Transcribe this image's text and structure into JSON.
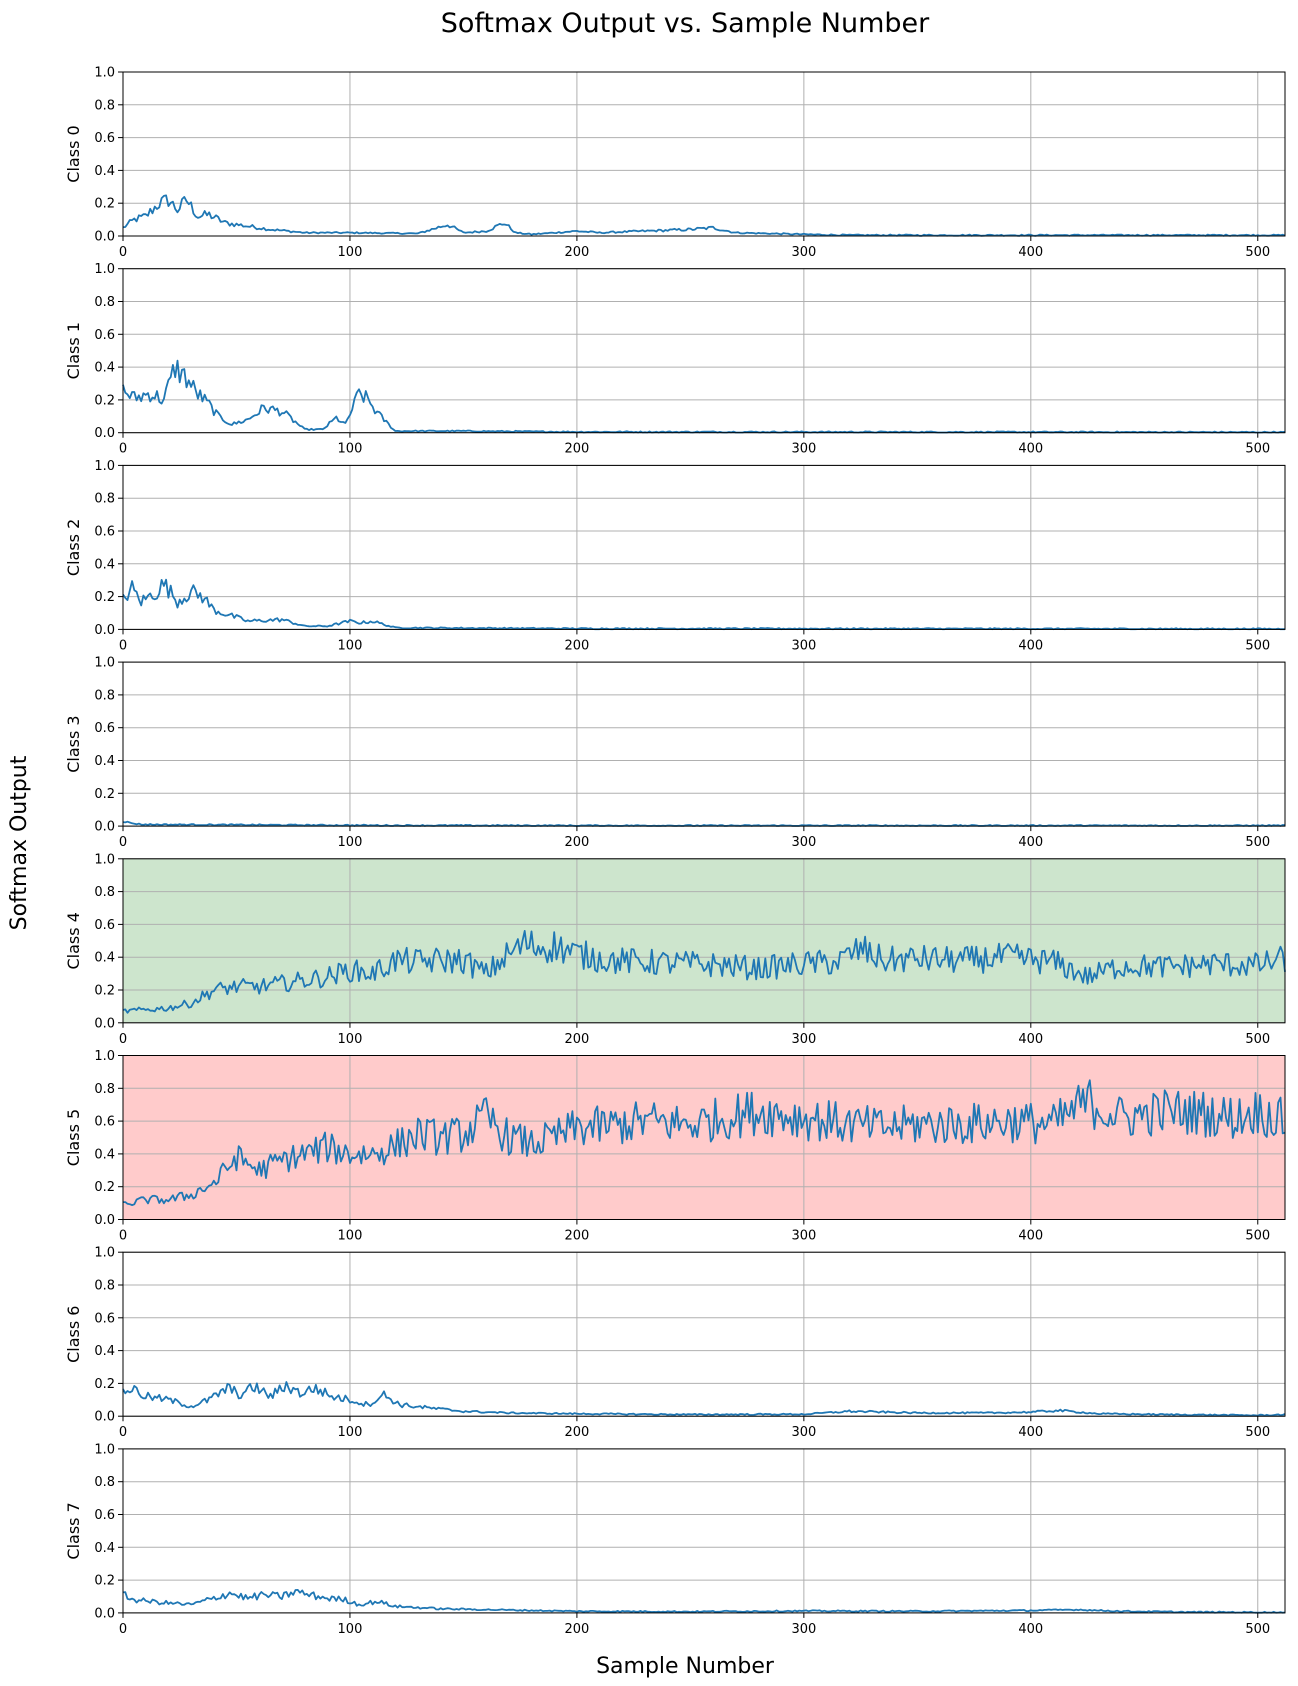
{
  "title": "Softmax Output vs. Sample Number",
  "xlabel": "Sample Number",
  "ylabel": "Softmax Output",
  "colors": {
    "line": "#1f77b4",
    "highlight_green": "#cde5cd",
    "highlight_red": "#ffcbcb",
    "grid": "#b0b0b0"
  },
  "chart_data": {
    "type": "line",
    "title": "Softmax Output vs. Sample Number",
    "xlabel": "Sample Number",
    "ylabel": "Softmax Output",
    "xlim": [
      0,
      512
    ],
    "ylim": [
      0,
      1
    ],
    "xticks": [
      0,
      100,
      200,
      300,
      400,
      500
    ],
    "xtick_labels": [
      "0",
      "100",
      "200",
      "300",
      "400",
      "500"
    ],
    "yticks": [
      0,
      0.2,
      0.4,
      0.6,
      0.8,
      1.0
    ],
    "ytick_labels": [
      "0.0",
      "0.2",
      "0.4",
      "0.6",
      "0.8",
      "1.0"
    ],
    "grid": true,
    "n_samples": 513,
    "subplots": [
      {
        "label": "Class 0",
        "background": null,
        "x": [
          0,
          5,
          10,
          16,
          20,
          24,
          28,
          33,
          38,
          45,
          55,
          65,
          80,
          100,
          130,
          143,
          150,
          160,
          168,
          173,
          180,
          200,
          210,
          230,
          250,
          260,
          270,
          300,
          320,
          512
        ],
        "values": [
          0.05,
          0.1,
          0.12,
          0.2,
          0.22,
          0.16,
          0.22,
          0.12,
          0.13,
          0.08,
          0.06,
          0.04,
          0.02,
          0.02,
          0.015,
          0.07,
          0.02,
          0.03,
          0.08,
          0.02,
          0.01,
          0.03,
          0.02,
          0.03,
          0.04,
          0.05,
          0.02,
          0.01,
          0.005,
          0.005
        ]
      },
      {
        "label": "Class 1",
        "background": null,
        "x": [
          0,
          5,
          12,
          18,
          23,
          28,
          32,
          38,
          42,
          48,
          55,
          62,
          70,
          80,
          88,
          94,
          98,
          104,
          108,
          112,
          120,
          150,
          200,
          512
        ],
        "values": [
          0.26,
          0.21,
          0.24,
          0.2,
          0.4,
          0.33,
          0.25,
          0.17,
          0.1,
          0.05,
          0.08,
          0.15,
          0.13,
          0.02,
          0.02,
          0.09,
          0.05,
          0.24,
          0.2,
          0.12,
          0.01,
          0.01,
          0.005,
          0.003
        ]
      },
      {
        "label": "Class 2",
        "background": null,
        "x": [
          0,
          4,
          8,
          15,
          18,
          24,
          30,
          35,
          40,
          44,
          55,
          70,
          80,
          90,
          100,
          105,
          110,
          120,
          200,
          512
        ],
        "values": [
          0.18,
          0.25,
          0.17,
          0.23,
          0.28,
          0.17,
          0.23,
          0.2,
          0.12,
          0.1,
          0.05,
          0.06,
          0.02,
          0.02,
          0.05,
          0.04,
          0.05,
          0.01,
          0.005,
          0.003
        ]
      },
      {
        "label": "Class 3",
        "background": null,
        "x": [
          0,
          3,
          8,
          40,
          80,
          120,
          200,
          300,
          400,
          512
        ],
        "values": [
          0.03,
          0.02,
          0.01,
          0.008,
          0.006,
          0.004,
          0.003,
          0.003,
          0.003,
          0.003
        ]
      },
      {
        "label": "Class 4",
        "background": "green",
        "x": [
          0,
          10,
          20,
          30,
          40,
          50,
          60,
          70,
          80,
          90,
          100,
          110,
          120,
          130,
          140,
          150,
          160,
          170,
          177,
          185,
          190,
          200,
          215,
          230,
          250,
          265,
          280,
          300,
          315,
          325,
          335,
          350,
          370,
          390,
          410,
          425,
          440,
          460,
          480,
          500,
          512
        ],
        "values": [
          0.07,
          0.08,
          0.09,
          0.12,
          0.2,
          0.22,
          0.22,
          0.24,
          0.26,
          0.28,
          0.32,
          0.3,
          0.38,
          0.37,
          0.38,
          0.38,
          0.3,
          0.42,
          0.48,
          0.46,
          0.47,
          0.42,
          0.38,
          0.37,
          0.36,
          0.35,
          0.33,
          0.36,
          0.37,
          0.45,
          0.38,
          0.39,
          0.38,
          0.4,
          0.37,
          0.28,
          0.35,
          0.34,
          0.36,
          0.35,
          0.39
        ]
      },
      {
        "label": "Class 5",
        "background": "red",
        "x": [
          0,
          10,
          20,
          30,
          40,
          50,
          60,
          70,
          80,
          90,
          100,
          110,
          120,
          130,
          140,
          150,
          160,
          170,
          180,
          190,
          200,
          215,
          230,
          250,
          265,
          280,
          300,
          320,
          335,
          350,
          370,
          390,
          410,
          425,
          440,
          460,
          475,
          490,
          500,
          512
        ],
        "values": [
          0.09,
          0.12,
          0.12,
          0.15,
          0.22,
          0.38,
          0.3,
          0.36,
          0.4,
          0.44,
          0.4,
          0.4,
          0.45,
          0.52,
          0.5,
          0.52,
          0.62,
          0.5,
          0.46,
          0.5,
          0.56,
          0.57,
          0.6,
          0.58,
          0.62,
          0.66,
          0.62,
          0.58,
          0.56,
          0.58,
          0.58,
          0.6,
          0.58,
          0.72,
          0.62,
          0.66,
          0.65,
          0.62,
          0.66,
          0.6
        ]
      },
      {
        "label": "Class 6",
        "background": null,
        "x": [
          0,
          4,
          10,
          20,
          30,
          38,
          46,
          52,
          58,
          65,
          72,
          78,
          85,
          92,
          100,
          108,
          115,
          122,
          135,
          150,
          170,
          200,
          250,
          300,
          320,
          350,
          380,
          400,
          412,
          430,
          460,
          500,
          512
        ],
        "values": [
          0.15,
          0.17,
          0.12,
          0.1,
          0.06,
          0.1,
          0.17,
          0.13,
          0.18,
          0.12,
          0.19,
          0.14,
          0.17,
          0.12,
          0.1,
          0.07,
          0.13,
          0.07,
          0.05,
          0.03,
          0.02,
          0.015,
          0.01,
          0.012,
          0.03,
          0.02,
          0.02,
          0.025,
          0.035,
          0.015,
          0.01,
          0.005,
          0.01
        ]
      },
      {
        "label": "Class 7",
        "background": null,
        "x": [
          0,
          5,
          12,
          20,
          30,
          40,
          47,
          55,
          62,
          70,
          76,
          82,
          90,
          98,
          104,
          112,
          120,
          140,
          160,
          200,
          250,
          300,
          350,
          400,
          420,
          440,
          470,
          512
        ],
        "values": [
          0.11,
          0.08,
          0.07,
          0.06,
          0.05,
          0.09,
          0.12,
          0.09,
          0.11,
          0.1,
          0.13,
          0.11,
          0.09,
          0.08,
          0.05,
          0.07,
          0.04,
          0.025,
          0.02,
          0.01,
          0.008,
          0.012,
          0.01,
          0.015,
          0.02,
          0.01,
          0.005,
          0.003
        ]
      }
    ]
  }
}
